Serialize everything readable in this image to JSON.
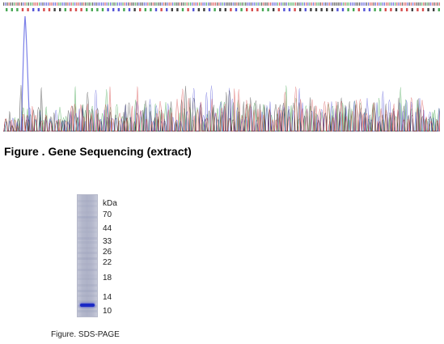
{
  "sequence_figure": {
    "caption": "Figure . Gene Sequencing (extract)",
    "base_colors": {
      "A": "#2a9a3a",
      "C": "#3a3ad0",
      "G": "#222222",
      "T": "#d03030"
    },
    "peak_color": "#7a7fe8"
  },
  "gel_figure": {
    "unit_label": "kDa",
    "markers": [
      "70",
      "44",
      "33",
      "26",
      "22",
      "18",
      "14",
      "10"
    ],
    "band_color": "#1b29c4",
    "caption": "Figure. SDS-PAGE"
  }
}
